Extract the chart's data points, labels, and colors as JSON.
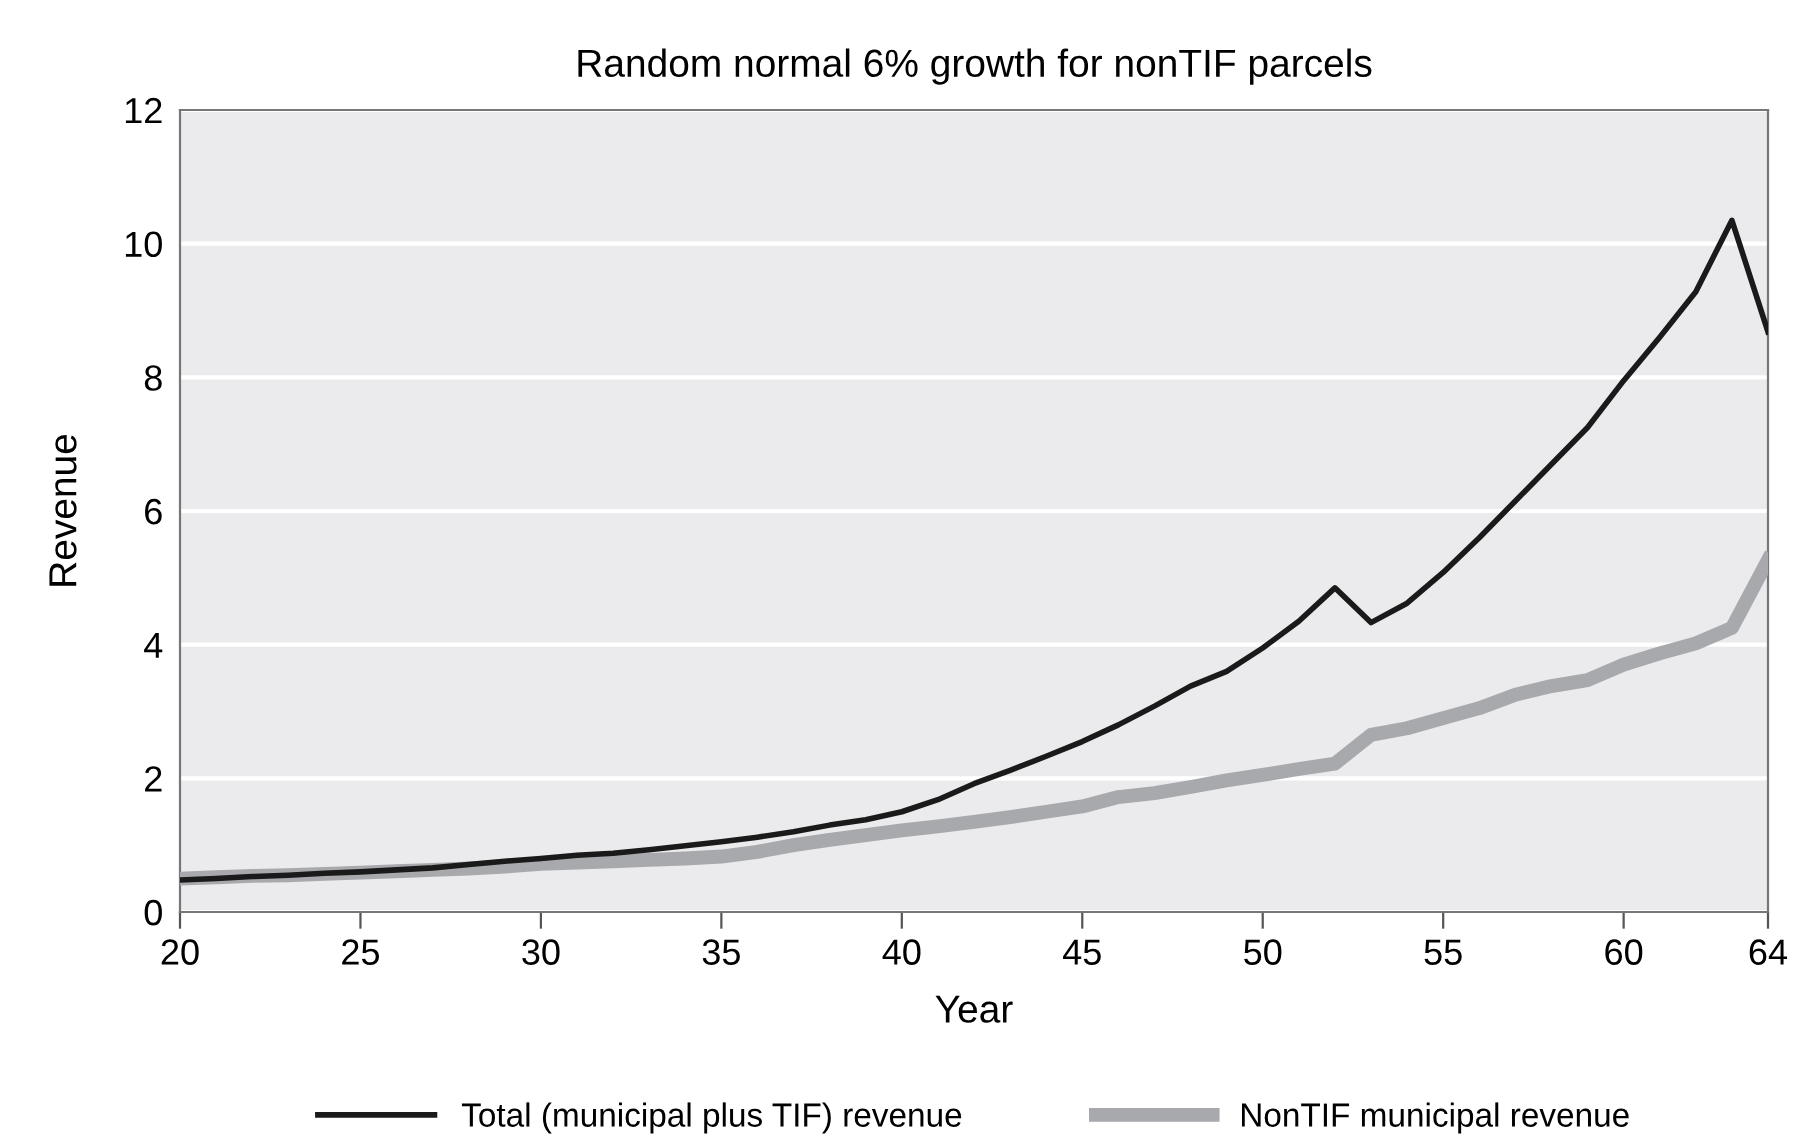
{
  "chart_data": {
    "type": "line",
    "title": "Random normal 6% growth for nonTIF parcels",
    "xlabel": "Year",
    "ylabel": "Revenue",
    "x": [
      20,
      21,
      22,
      23,
      24,
      25,
      26,
      27,
      28,
      29,
      30,
      31,
      32,
      33,
      34,
      35,
      36,
      37,
      38,
      39,
      40,
      41,
      42,
      43,
      44,
      45,
      46,
      47,
      48,
      49,
      50,
      51,
      52,
      53,
      54,
      55,
      56,
      57,
      58,
      59,
      60,
      61,
      62,
      63,
      64
    ],
    "series": [
      {
        "name": "Total (municipal plus TIF) revenue",
        "color": "#1a1a1a",
        "values": [
          0.48,
          0.5,
          0.53,
          0.55,
          0.58,
          0.6,
          0.63,
          0.66,
          0.71,
          0.76,
          0.8,
          0.85,
          0.88,
          0.93,
          0.99,
          1.05,
          1.12,
          1.2,
          1.3,
          1.38,
          1.5,
          1.68,
          1.92,
          2.12,
          2.33,
          2.55,
          2.8,
          3.08,
          3.38,
          3.6,
          3.95,
          4.35,
          4.85,
          4.33,
          4.62,
          5.08,
          5.6,
          6.15,
          6.7,
          7.25,
          7.95,
          8.6,
          9.28,
          10.35,
          8.68
        ]
      },
      {
        "name": "NonTIF municipal revenue",
        "color": "#a7a9ac",
        "values": [
          0.5,
          0.52,
          0.54,
          0.55,
          0.57,
          0.59,
          0.61,
          0.63,
          0.65,
          0.68,
          0.72,
          0.74,
          0.76,
          0.78,
          0.8,
          0.83,
          0.9,
          1.0,
          1.08,
          1.15,
          1.22,
          1.28,
          1.35,
          1.42,
          1.5,
          1.58,
          1.72,
          1.78,
          1.87,
          1.97,
          2.05,
          2.14,
          2.22,
          2.65,
          2.75,
          2.9,
          3.05,
          3.25,
          3.38,
          3.47,
          3.7,
          3.87,
          4.02,
          4.25,
          5.27
        ]
      }
    ],
    "xlim": [
      20,
      64
    ],
    "xticks": [
      20,
      25,
      30,
      35,
      40,
      45,
      50,
      55,
      60,
      64
    ],
    "ylim": [
      0,
      12
    ],
    "yticks": [
      0,
      2,
      4,
      6,
      8,
      10,
      12
    ],
    "grid": "y",
    "legend": "bottom",
    "line_style": "solid",
    "marker": "none"
  }
}
